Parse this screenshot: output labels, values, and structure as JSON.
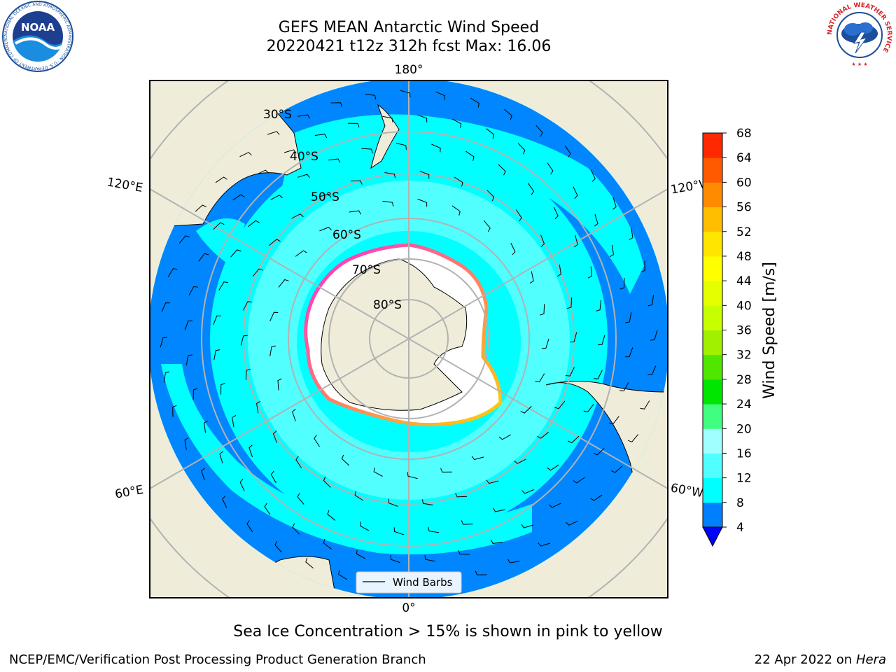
{
  "title": {
    "line1": "GEFS MEAN Antarctic Wind Speed",
    "line2": "20220421 t12z 312h fcst   Max: 16.06"
  },
  "map": {
    "projection": "south-polar-stereographic",
    "lon_labels": [
      "180°",
      "120°E",
      "120°W",
      "60°E",
      "60°W",
      "0°"
    ],
    "lat_labels": [
      "30°S",
      "40°S",
      "50°S",
      "60°S",
      "70°S",
      "80°S"
    ],
    "legend_label": "Wind Barbs",
    "colors": {
      "land": "#efedda",
      "ice": "#ffffff",
      "grid": "#b2b2b2",
      "frame": "#000000",
      "wind_4_8": "#0080ff",
      "wind_8_12": "#00ffff",
      "wind_12_16": "#60ffff",
      "ice_edge_pink": "#ff2bd3",
      "ice_edge_yellow": "#ffd000"
    }
  },
  "colorbar": {
    "label": "Wind Speed [m/s]",
    "ticks": [
      "4",
      "8",
      "12",
      "16",
      "20",
      "24",
      "28",
      "32",
      "36",
      "40",
      "44",
      "48",
      "52",
      "56",
      "60",
      "64",
      "68"
    ],
    "colors": [
      "#0080ff",
      "#00ffff",
      "#50ffff",
      "#a0ffff",
      "#40ff80",
      "#00e600",
      "#50e600",
      "#a0f000",
      "#c8ff00",
      "#e6ff00",
      "#ffff00",
      "#ffe600",
      "#ffbe00",
      "#ff8c00",
      "#ff5a00",
      "#ff2800"
    ],
    "extend_color": "#0000ff"
  },
  "caption": "Sea Ice Concentration > 15% is shown in pink to yellow",
  "footer": {
    "left": "NCEP/EMC/Verification Post Processing Product Generation Branch",
    "right_date": "22 Apr 2022 on ",
    "right_machine": "Hera"
  },
  "logos": {
    "noaa": "NOAA",
    "noaa_ring": "NATIONAL OCEANIC AND ATMOSPHERIC ADMINISTRATION · U.S. DEPARTMENT OF COMMERCE",
    "nws_ring": "NATIONAL WEATHER SERVICE"
  }
}
